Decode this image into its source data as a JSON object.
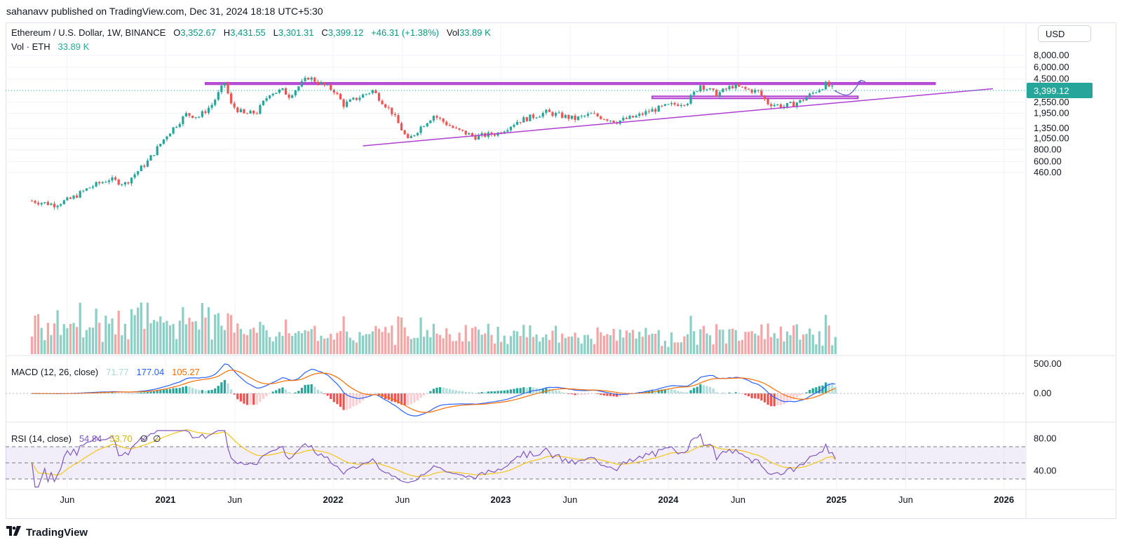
{
  "header": {
    "published_by": "sahanavv published on TradingView.com, Dec 31, 2024 18:18 UTC+5:30"
  },
  "main_legend": {
    "symbol": "Ethereum / U.S. Dollar, 1W, BINANCE",
    "open_label": "O",
    "open": "3,352.67",
    "high_label": "H",
    "high": "3,431.55",
    "low_label": "L",
    "low": "3,301.31",
    "close_label": "C",
    "close": "3,399.12",
    "change": "+46.31 (+1.38%)",
    "vol_label": "Vol",
    "vol": "33.89 K"
  },
  "volume_legend": {
    "label": "Vol · ETH",
    "value": "33.89 K"
  },
  "macd_legend": {
    "label": "MACD (12, 26, close)",
    "hist": "71.77",
    "macd": "177.04",
    "signal": "105.27"
  },
  "rsi_legend": {
    "label": "RSI (14, close)",
    "rsi": "54.84",
    "ma": "53.70",
    "na1": "∅",
    "na2": "∅"
  },
  "price_scale": {
    "currency_button": "USD",
    "ticks": [
      "8,000.00",
      "6,000.00",
      "4,500.00",
      "2,550.00",
      "1,950.00",
      "1,350.00",
      "1,050.00",
      "800.00",
      "600.00",
      "460.00"
    ],
    "last_price": "3,399.12"
  },
  "macd_scale": {
    "ticks": [
      "500.00",
      "0.00"
    ]
  },
  "rsi_scale": {
    "ticks": [
      "80.00",
      "40.00"
    ]
  },
  "time_axis": {
    "labels": [
      "Jun",
      "2021",
      "Jun",
      "2022",
      "Jun",
      "2023",
      "Jun",
      "2024",
      "Jun",
      "2025",
      "Jun",
      "2026"
    ]
  },
  "footer": {
    "brand": "TradingView"
  },
  "colors": {
    "up": "#26a69a",
    "down": "#ef5350",
    "vol_up": "#8ccfc4",
    "vol_down": "#f4a5a5",
    "macd": "#2962ff",
    "signal": "#ff6d00",
    "rsi": "#7e57c2",
    "rsi_ma": "#f5c518",
    "drawing": "#b03fd1",
    "last_price": "#26a69a"
  },
  "chart_data": {
    "type": "candlestick",
    "title": "Ethereum / U.S. Dollar, 1W, BINANCE",
    "y_scale": "log",
    "last_price": 3399.12,
    "ohlc_last": {
      "open": 3352.67,
      "high": 3431.55,
      "low": 3301.31,
      "close": 3399.12
    },
    "price_path": [
      [
        "2020-03-16",
        230
      ],
      [
        "2020-05-04",
        210
      ],
      [
        "2020-06-08",
        240
      ],
      [
        "2020-07-20",
        320
      ],
      [
        "2020-08-31",
        390
      ],
      [
        "2020-10-05",
        350
      ],
      [
        "2020-11-23",
        600
      ],
      [
        "2021-01-04",
        1150
      ],
      [
        "2021-02-15",
        1900
      ],
      [
        "2021-03-15",
        1800
      ],
      [
        "2021-04-12",
        2400
      ],
      [
        "2021-05-10",
        4100
      ],
      [
        "2021-05-24",
        2400
      ],
      [
        "2021-06-21",
        1900
      ],
      [
        "2021-07-19",
        2000
      ],
      [
        "2021-08-16",
        3200
      ],
      [
        "2021-09-13",
        3400
      ],
      [
        "2021-09-27",
        3000
      ],
      [
        "2021-11-08",
        4700
      ],
      [
        "2021-12-06",
        4000
      ],
      [
        "2022-01-03",
        3400
      ],
      [
        "2022-01-24",
        2400
      ],
      [
        "2022-03-28",
        3400
      ],
      [
        "2022-05-09",
        2000
      ],
      [
        "2022-06-13",
        1000
      ],
      [
        "2022-07-11",
        1400
      ],
      [
        "2022-08-08",
        1850
      ],
      [
        "2022-09-26",
        1300
      ],
      [
        "2022-11-07",
        1100
      ],
      [
        "2022-12-26",
        1200
      ],
      [
        "2023-02-06",
        1600
      ],
      [
        "2023-04-10",
        2000
      ],
      [
        "2023-06-12",
        1700
      ],
      [
        "2023-07-17",
        1900
      ],
      [
        "2023-09-11",
        1600
      ],
      [
        "2023-10-23",
        1800
      ],
      [
        "2023-11-20",
        2050
      ],
      [
        "2023-12-25",
        2300
      ],
      [
        "2024-02-12",
        2600
      ],
      [
        "2024-03-11",
        3900
      ],
      [
        "2024-04-15",
        3100
      ],
      [
        "2024-05-20",
        3800
      ],
      [
        "2024-06-17",
        3500
      ],
      [
        "2024-07-15",
        3300
      ],
      [
        "2024-08-05",
        2500
      ],
      [
        "2024-09-09",
        2300
      ],
      [
        "2024-10-14",
        2600
      ],
      [
        "2024-11-11",
        3200
      ],
      [
        "2024-12-09",
        3950
      ],
      [
        "2024-12-30",
        3399
      ]
    ],
    "horizontal_zones": [
      {
        "from": "2021-03-29",
        "to": "2025-08-04",
        "low": 3950,
        "high": 4100
      },
      {
        "from": "2023-11-27",
        "to": "2025-02-17",
        "low": 2800,
        "high": 2950
      }
    ],
    "trendline": {
      "from": [
        "2022-03-07",
        880
      ],
      "to": [
        "2025-12-08",
        3550
      ]
    },
    "projection_arrow": {
      "from": [
        "2024-12-30",
        3350
      ],
      "to": [
        "2025-02-24",
        4350
      ]
    },
    "indicators": {
      "macd": {
        "params": "12, 26, close",
        "histogram": 71.77,
        "macd": 177.04,
        "signal": 105.27
      },
      "rsi": {
        "params": "14, close",
        "rsi": 54.84,
        "ma": 53.7,
        "bands": [
          30,
          50,
          70
        ]
      }
    },
    "x_ticks": [
      "Jun",
      "2021",
      "Jun",
      "2022",
      "Jun",
      "2023",
      "Jun",
      "2024",
      "Jun",
      "2025",
      "Jun",
      "2026"
    ],
    "y_ticks": [
      8000,
      6000,
      4500,
      2550,
      1950,
      1350,
      1050,
      800,
      600,
      460
    ],
    "grid": true
  }
}
